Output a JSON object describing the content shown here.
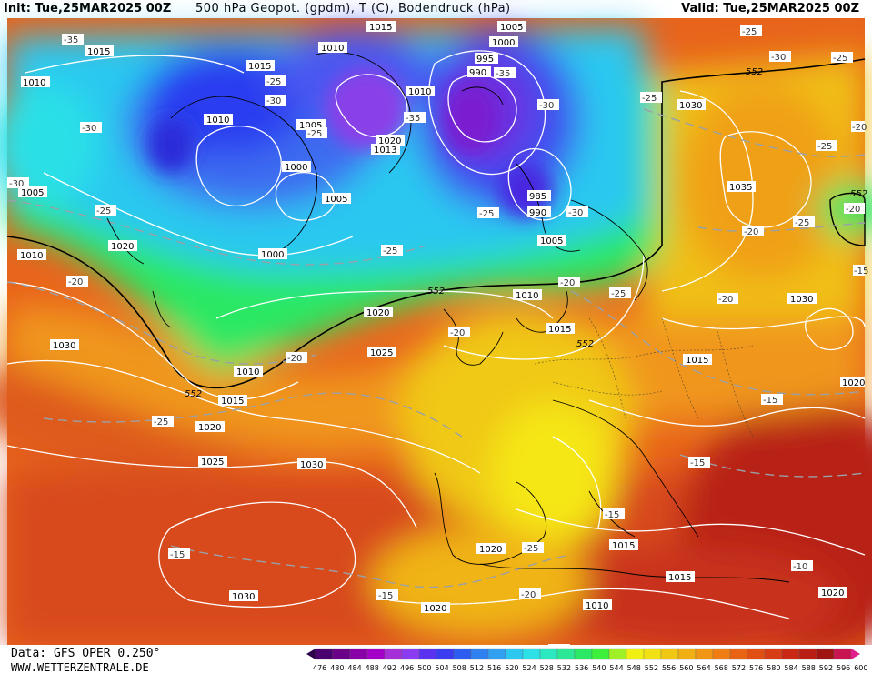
{
  "header": {
    "init": "Init: Tue,25MAR2025 00Z",
    "title": "500 hPa Geopot. (gpdm), T (C), Bodendruck (hPa)",
    "valid": "Valid: Tue,25MAR2025 00Z"
  },
  "footer": {
    "source": "Data: GFS OPER 0.250°",
    "website": "WWW.WETTERZENTRALE.DE"
  },
  "colors": {
    "palette": [
      "#2d004b",
      "#4b0070",
      "#6a0087",
      "#8a00a8",
      "#a300c8",
      "#a530d8",
      "#8b3cf0",
      "#5a32f0",
      "#3a3cf0",
      "#2c5cf0",
      "#2f80f0",
      "#32a0f0",
      "#2cc8f0",
      "#2ce0e6",
      "#2ce8c0",
      "#2ce896",
      "#2ce864",
      "#3cf03c",
      "#a0f028",
      "#f0f014",
      "#f0e014",
      "#f0c814",
      "#f0b014",
      "#f09614",
      "#f07c14",
      "#e86414",
      "#e05014",
      "#d83c14",
      "#c82814",
      "#b81e14",
      "#a01414",
      "#c81450",
      "#e01e8c"
    ],
    "contour": "#ffffff",
    "coast": "#000000"
  },
  "scale": {
    "ticks": [
      "476",
      "480",
      "484",
      "488",
      "492",
      "496",
      "500",
      "504",
      "508",
      "512",
      "516",
      "520",
      "524",
      "528",
      "532",
      "536",
      "540",
      "544",
      "548",
      "552",
      "556",
      "560",
      "564",
      "568",
      "572",
      "576",
      "580",
      "584",
      "588",
      "592",
      "596",
      "600"
    ]
  },
  "map_labels": {
    "pressure": [
      "1015",
      "1015",
      "1010",
      "1010",
      "1015",
      "1005",
      "1000",
      "995",
      "990",
      "1010",
      "1010",
      "1005",
      "1020",
      "1013",
      "1000",
      "1005",
      "1030",
      "1035",
      "985",
      "990",
      "1005",
      "1000",
      "1020",
      "1010",
      "1005",
      "1010",
      "1015",
      "1020",
      "1030",
      "1025",
      "1010",
      "1015",
      "1020",
      "1025",
      "1030",
      "1015",
      "1020",
      "1015",
      "1020",
      "1030",
      "1015",
      "1010",
      "1020",
      "1020",
      "1030"
    ],
    "temperature": [
      "-35",
      "-30",
      "-30",
      "-25",
      "-25",
      "-35",
      "-35",
      "-30",
      "-30",
      "-25",
      "-25",
      "-30",
      "-25",
      "-20",
      "-20",
      "-25",
      "-20",
      "-25",
      "-20",
      "-20",
      "-25",
      "-20",
      "-15",
      "-20",
      "-15",
      "-25",
      "-15",
      "-15",
      "-10",
      "-25",
      "-30",
      "-25",
      "-25",
      "-20",
      "-15",
      "-15",
      "-20",
      "-25"
    ],
    "geopot": [
      "552",
      "552",
      "552",
      "552",
      "552"
    ]
  }
}
